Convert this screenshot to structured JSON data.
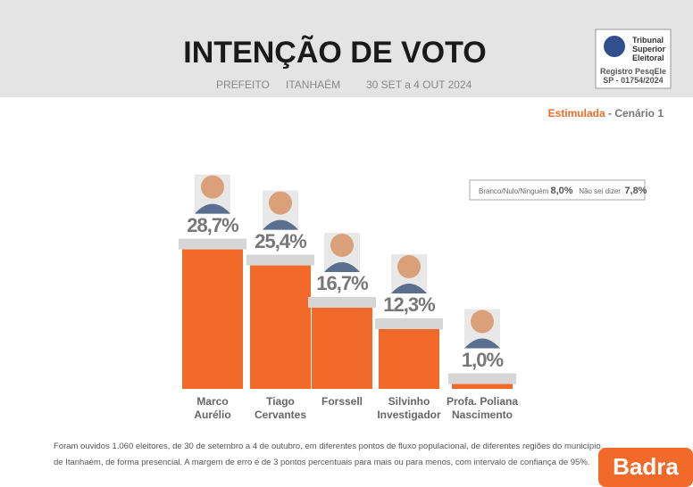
{
  "header": {
    "title": "INTENÇÃO DE VOTO",
    "subtitle": [
      "PREFEITO",
      "ITANHAÉM",
      "30 SET a 4 OUT 2024"
    ],
    "registry": {
      "lines": [
        "Tribunal",
        "Superior",
        "Eleitoral"
      ],
      "label": "Registro PesqEle",
      "number": "SP - 01754/2024"
    }
  },
  "scenario": {
    "type": "Estimulada",
    "name": "- Cenário 1"
  },
  "others": [
    {
      "label": "Branco/Nulo/Ninguém",
      "value": "8,0%"
    },
    {
      "label": "Não sei dizer",
      "value": "7,8%"
    }
  ],
  "chart_data": {
    "type": "bar",
    "categories": [
      "Marco\nAurélio",
      "Tiago\nCervantes",
      "Forssell",
      "Silvinho\nInvestigador",
      "Profa. Poliana\nNascimento"
    ],
    "values": [
      28.7,
      25.4,
      16.7,
      12.3,
      1.0
    ],
    "value_labels": [
      "28,7%",
      "25,4%",
      "16,7%",
      "12,3%",
      "1,0%"
    ],
    "color": "#f26a2a"
  },
  "footnote": [
    "Foram ouvidos 1.060 eleitores, de 30 de setembro a 4 de outubro, em diferentes pontos de fluxo populacional, de diferentes regiões do município",
    "de Itanhaém, de forma presencial. A margem de erro é de 3 pontos percentuais para mais ou para menos, com intervalo de confiança de 95%."
  ],
  "brand": "Badra"
}
